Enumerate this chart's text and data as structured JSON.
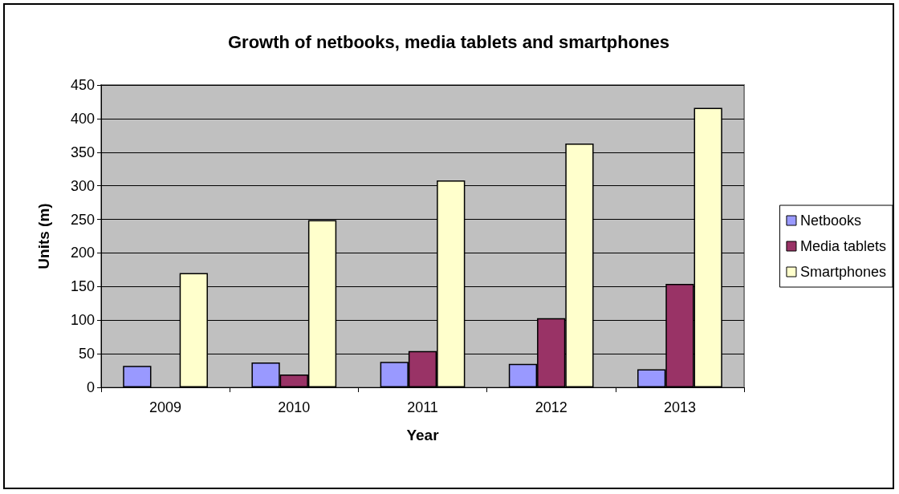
{
  "chart_data": {
    "type": "bar",
    "title": "Growth of netbooks, media tablets and smartphones",
    "xlabel": "Year",
    "ylabel": "Units (m)",
    "categories": [
      "2009",
      "2010",
      "2011",
      "2012",
      "2013"
    ],
    "series": [
      {
        "name": "Netbooks",
        "color": "#9999ff",
        "values": [
          32,
          37,
          38,
          35,
          27
        ]
      },
      {
        "name": "Media tablets",
        "color": "#993366",
        "values": [
          null,
          19,
          54,
          103,
          154
        ]
      },
      {
        "name": "Smartphones",
        "color": "#ffffcc",
        "values": [
          170,
          249,
          308,
          363,
          416
        ]
      }
    ],
    "ylim": [
      0,
      450
    ],
    "yticks": [
      0,
      50,
      100,
      150,
      200,
      250,
      300,
      350,
      400,
      450
    ],
    "grid": "y",
    "legend": "right"
  }
}
